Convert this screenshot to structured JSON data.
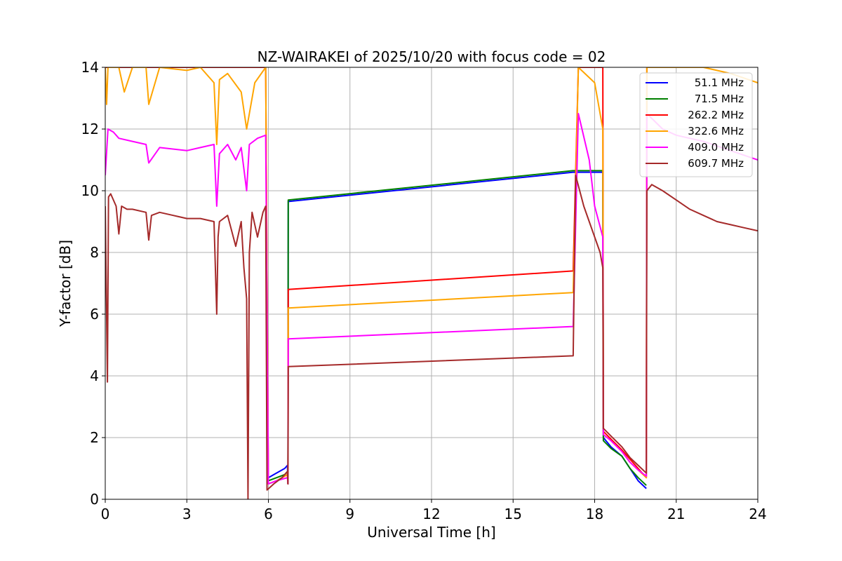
{
  "chart_data": {
    "type": "line",
    "title": "NZ-WAIRAKEI of 2025/10/20 with focus code = 02",
    "xlabel": "Universal Time [h]",
    "ylabel": "Y-factor [dB]",
    "xlim": [
      0,
      24
    ],
    "ylim": [
      0,
      14
    ],
    "xticks": [
      0,
      3,
      6,
      9,
      12,
      15,
      18,
      21,
      24
    ],
    "yticks": [
      0,
      2,
      4,
      6,
      8,
      10,
      12,
      14
    ],
    "grid": true,
    "legend_position": "top-right",
    "series": [
      {
        "name": "51.1 MHz",
        "color": "#0000ff",
        "x": [
          5.95,
          6.0,
          6.2,
          6.4,
          6.6,
          6.7,
          6.72,
          6.73,
          17.2,
          17.21,
          18.3,
          18.32,
          18.6,
          19.0,
          19.3,
          19.6,
          19.9
        ],
        "y": [
          0.5,
          0.7,
          0.8,
          0.9,
          1.0,
          1.1,
          0.5,
          9.65,
          10.6,
          10.6,
          10.6,
          2.0,
          1.7,
          1.4,
          1.0,
          0.6,
          0.35
        ]
      },
      {
        "name": "71.5 MHz",
        "color": "#008000",
        "x": [
          5.95,
          6.0,
          6.3,
          6.6,
          6.7,
          6.72,
          6.73,
          17.2,
          17.21,
          18.3,
          18.32,
          18.6,
          19.0,
          19.3,
          19.6,
          19.9
        ],
        "y": [
          0.5,
          0.6,
          0.7,
          0.8,
          0.9,
          0.5,
          9.7,
          10.65,
          10.65,
          10.65,
          1.9,
          1.65,
          1.4,
          1.0,
          0.7,
          0.45
        ]
      },
      {
        "name": "262.2 MHz",
        "color": "#ff0000",
        "x": [
          0.0,
          0.1,
          1.0,
          2.0,
          3.0,
          3.5,
          4.0,
          4.5,
          5.0,
          5.5,
          5.9,
          6.0,
          6.3,
          6.7,
          6.72,
          6.73,
          17.2,
          17.21,
          17.4,
          18.0,
          18.3,
          18.32,
          18.6,
          19.0,
          19.3,
          19.6,
          19.9,
          19.92
        ],
        "y": [
          14.0,
          14.0,
          14.0,
          14.0,
          14.0,
          14.0,
          14.0,
          14.0,
          14.0,
          14.0,
          14.0,
          0.5,
          0.6,
          0.8,
          0.5,
          6.8,
          7.4,
          7.4,
          14.0,
          14.0,
          14.0,
          2.2,
          1.95,
          1.6,
          1.3,
          1.0,
          0.7,
          14.0
        ]
      },
      {
        "name": "322.6 MHz",
        "color": "#ffa500",
        "x": [
          0.0,
          0.05,
          0.1,
          0.5,
          0.7,
          1.0,
          1.5,
          1.6,
          2.0,
          3.0,
          3.5,
          4.0,
          4.1,
          4.2,
          4.5,
          5.0,
          5.2,
          5.5,
          5.9,
          6.0,
          6.3,
          6.7,
          6.72,
          6.73,
          17.2,
          17.21,
          17.4,
          18.0,
          18.3,
          18.32,
          18.6,
          19.0,
          19.3,
          19.6,
          19.9,
          19.92,
          21.0,
          22.0,
          23.0,
          24.0
        ],
        "y": [
          14.0,
          12.8,
          14.0,
          14.0,
          13.2,
          14.0,
          14.0,
          12.8,
          14.0,
          13.9,
          14.0,
          13.5,
          11.5,
          13.6,
          13.8,
          13.2,
          12.0,
          13.5,
          14.0,
          0.5,
          0.6,
          0.8,
          0.5,
          6.2,
          6.7,
          6.7,
          14.0,
          13.5,
          12.0,
          2.1,
          1.9,
          1.55,
          1.2,
          0.95,
          0.7,
          14.0,
          14.0,
          14.0,
          13.8,
          13.5
        ]
      },
      {
        "name": "409.0 MHz",
        "color": "#ff00ff",
        "x": [
          0.0,
          0.1,
          0.3,
          0.5,
          1.0,
          1.5,
          1.6,
          2.0,
          3.0,
          3.5,
          4.0,
          4.1,
          4.2,
          4.5,
          4.8,
          5.0,
          5.2,
          5.3,
          5.6,
          5.9,
          6.0,
          6.3,
          6.7,
          6.72,
          6.73,
          17.2,
          17.21,
          17.4,
          17.8,
          18.0,
          18.3,
          18.32,
          18.6,
          19.0,
          19.3,
          19.6,
          19.9,
          19.92,
          20.5,
          21.0,
          22.0,
          23.0,
          24.0
        ],
        "y": [
          10.5,
          12.0,
          11.9,
          11.7,
          11.6,
          11.5,
          10.9,
          11.4,
          11.3,
          11.4,
          11.5,
          9.5,
          11.2,
          11.5,
          11.0,
          11.4,
          10.0,
          11.5,
          11.7,
          11.8,
          0.5,
          0.6,
          0.7,
          0.5,
          5.2,
          5.6,
          5.6,
          12.5,
          11.0,
          9.5,
          8.5,
          2.1,
          1.9,
          1.55,
          1.2,
          0.95,
          0.75,
          12.5,
          12.0,
          11.8,
          11.6,
          11.3,
          11.0
        ]
      },
      {
        "name": "609.7 MHz",
        "color": "#a52a2a",
        "x": [
          0.0,
          0.08,
          0.12,
          0.2,
          0.4,
          0.5,
          0.6,
          0.8,
          1.0,
          1.5,
          1.6,
          1.7,
          2.0,
          2.5,
          3.0,
          3.5,
          4.0,
          4.1,
          4.15,
          4.2,
          4.5,
          4.8,
          5.0,
          5.1,
          5.2,
          5.25,
          5.3,
          5.4,
          5.6,
          5.8,
          5.9,
          5.95,
          6.2,
          6.5,
          6.7,
          6.72,
          6.73,
          17.2,
          17.21,
          17.3,
          17.6,
          17.8,
          18.0,
          18.2,
          18.3,
          18.32,
          18.6,
          19.0,
          19.3,
          19.6,
          19.9,
          19.92,
          20.1,
          20.5,
          21.0,
          21.5,
          22.0,
          22.5,
          23.0,
          23.5,
          24.0
        ],
        "y": [
          9.5,
          3.8,
          9.8,
          9.9,
          9.5,
          8.6,
          9.5,
          9.4,
          9.4,
          9.3,
          8.4,
          9.2,
          9.3,
          9.2,
          9.1,
          9.1,
          9.0,
          6.0,
          8.5,
          9.0,
          9.2,
          8.2,
          9.0,
          7.5,
          6.5,
          0.0,
          8.0,
          9.3,
          8.5,
          9.3,
          9.5,
          0.3,
          0.5,
          0.7,
          0.9,
          0.5,
          4.3,
          4.65,
          4.65,
          10.5,
          9.5,
          9.0,
          8.5,
          8.0,
          7.5,
          2.3,
          2.05,
          1.7,
          1.35,
          1.1,
          0.85,
          10.0,
          10.2,
          10.0,
          9.7,
          9.4,
          9.2,
          9.0,
          8.9,
          8.8,
          8.7
        ]
      }
    ]
  }
}
